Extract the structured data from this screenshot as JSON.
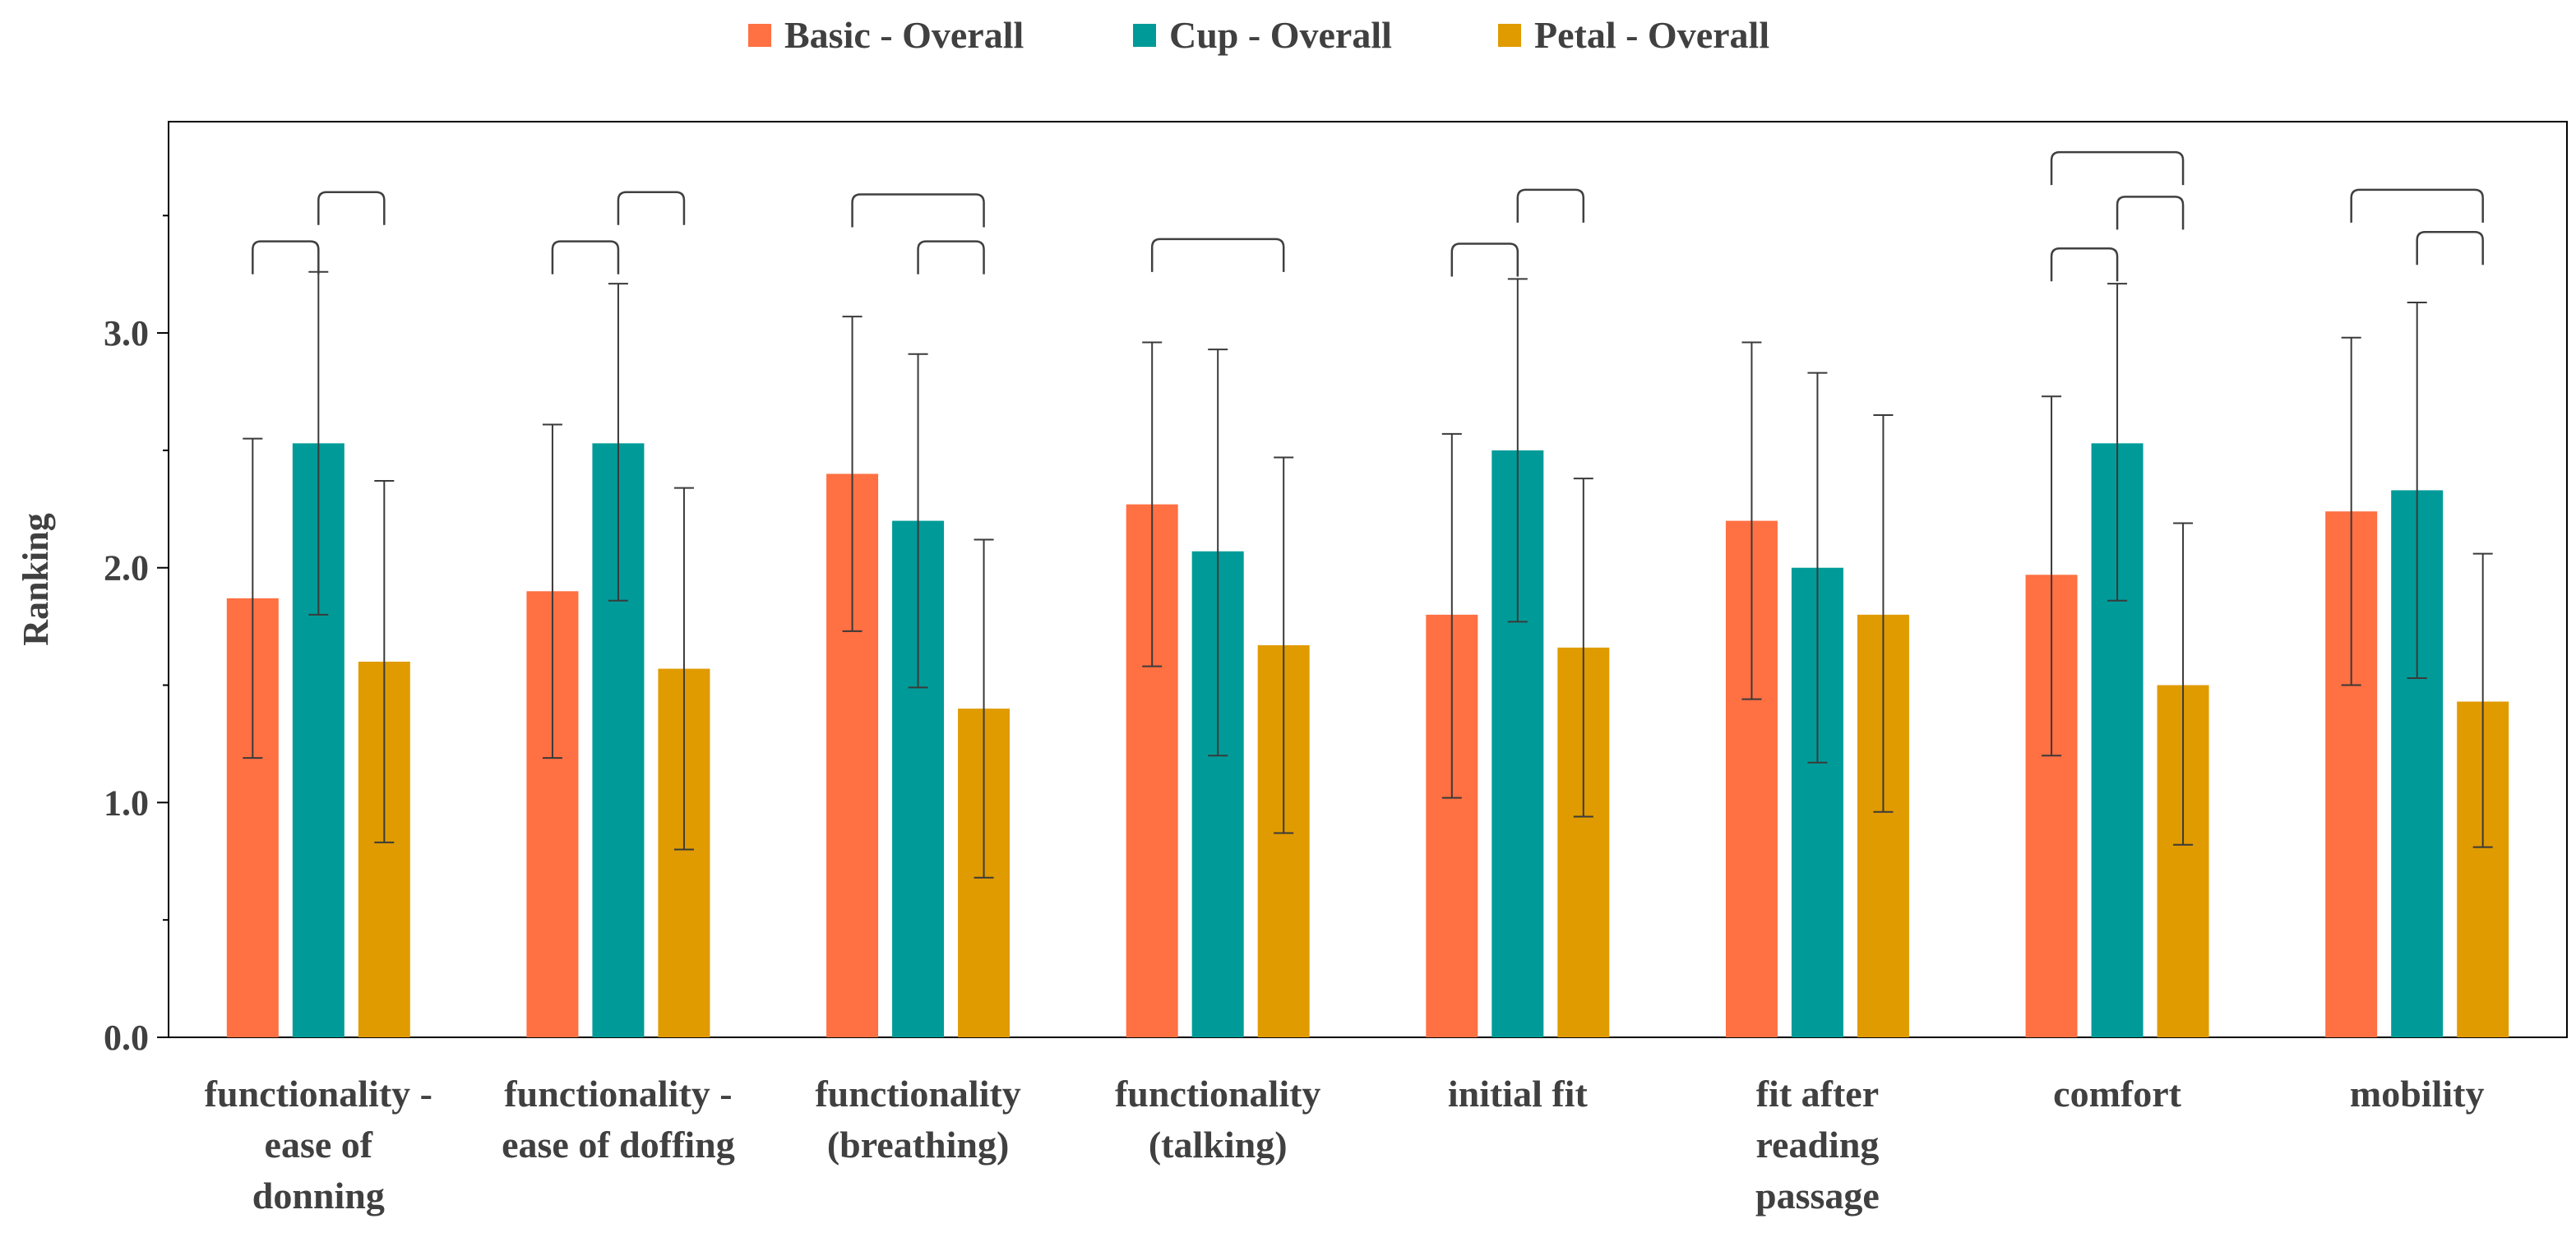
{
  "chart_data": {
    "type": "bar",
    "title": "",
    "xlabel": "",
    "ylabel": "Ranking",
    "ylim": [
      0,
      3.9
    ],
    "yticks": [
      "0.0",
      "1.0",
      "2.0",
      "3.0"
    ],
    "legend_position": "top",
    "grid": false,
    "categories": [
      [
        "functionality -",
        "ease of",
        "donning"
      ],
      [
        "functionality -",
        "ease of doffing"
      ],
      [
        "functionality",
        "(breathing)"
      ],
      [
        "functionality",
        "(talking)"
      ],
      [
        "initial fit"
      ],
      [
        "fit after",
        "reading",
        "passage"
      ],
      [
        "comfort"
      ],
      [
        "mobility"
      ]
    ],
    "series": [
      {
        "name": "Basic - Overall",
        "color": "#FF7043",
        "values": [
          1.87,
          1.9,
          2.4,
          2.27,
          1.8,
          2.2,
          1.97,
          2.24
        ],
        "err_low": [
          1.19,
          1.19,
          1.73,
          1.58,
          1.02,
          1.44,
          1.2,
          1.5
        ],
        "err_high": [
          2.55,
          2.61,
          3.07,
          2.96,
          2.57,
          2.96,
          2.73,
          2.98
        ]
      },
      {
        "name": "Cup - Overall",
        "color": "#009B98",
        "values": [
          2.53,
          2.53,
          2.2,
          2.07,
          2.5,
          2.0,
          2.53,
          2.33
        ],
        "err_low": [
          1.8,
          1.86,
          1.49,
          1.2,
          1.77,
          1.17,
          1.86,
          1.53
        ],
        "err_high": [
          3.26,
          3.21,
          2.91,
          2.93,
          3.23,
          2.83,
          3.21,
          3.13
        ]
      },
      {
        "name": "Petal - Overall",
        "color": "#E09B00",
        "values": [
          1.6,
          1.57,
          1.4,
          1.67,
          1.66,
          1.8,
          1.5,
          1.43
        ],
        "err_low": [
          0.83,
          0.8,
          0.68,
          0.87,
          0.94,
          0.96,
          0.82,
          0.81
        ],
        "err_high": [
          2.37,
          2.34,
          2.12,
          2.47,
          2.38,
          2.65,
          2.19,
          2.06
        ]
      }
    ],
    "significance_brackets": [
      {
        "category": 0,
        "from": 0,
        "to": 1,
        "y": 3.39
      },
      {
        "category": 0,
        "from": 1,
        "to": 2,
        "y": 3.6
      },
      {
        "category": 1,
        "from": 0,
        "to": 1,
        "y": 3.39
      },
      {
        "category": 1,
        "from": 1,
        "to": 2,
        "y": 3.6
      },
      {
        "category": 2,
        "from": 0,
        "to": 2,
        "y": 3.59
      },
      {
        "category": 2,
        "from": 1,
        "to": 2,
        "y": 3.39
      },
      {
        "category": 3,
        "from": 0,
        "to": 2,
        "y": 3.4
      },
      {
        "category": 4,
        "from": 0,
        "to": 1,
        "y": 3.38
      },
      {
        "category": 4,
        "from": 1,
        "to": 2,
        "y": 3.61
      },
      {
        "category": 6,
        "from": 0,
        "to": 2,
        "y": 3.77
      },
      {
        "category": 6,
        "from": 1,
        "to": 2,
        "y": 3.58
      },
      {
        "category": 6,
        "from": 0,
        "to": 1,
        "y": 3.36
      },
      {
        "category": 7,
        "from": 0,
        "to": 2,
        "y": 3.61
      },
      {
        "category": 7,
        "from": 1,
        "to": 2,
        "y": 3.43
      }
    ]
  }
}
